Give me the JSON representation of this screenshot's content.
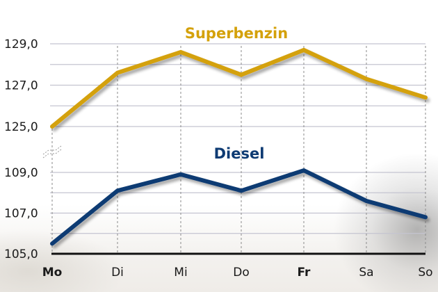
{
  "chart_data": {
    "type": "line",
    "title": "",
    "xlabel": "",
    "ylabel": "",
    "categories": [
      "Mo",
      "Di",
      "Mi",
      "Do",
      "Fr",
      "Sa",
      "So"
    ],
    "bold_categories": [
      "Mo",
      "Fr"
    ],
    "broken_axis": true,
    "panels": [
      {
        "name": "upper",
        "ylim": [
          125.0,
          129.0
        ],
        "yticks": [
          "129,0",
          "127,0",
          "125,0"
        ],
        "series": [
          {
            "name": "Superbenzin",
            "color": "#D4A10A",
            "values": [
              125.0,
              127.6,
              128.6,
              127.5,
              128.7,
              127.3,
              126.4
            ]
          }
        ]
      },
      {
        "name": "lower",
        "ylim": [
          105.0,
          109.0
        ],
        "yticks": [
          "109,0",
          "107,0",
          "105,0"
        ],
        "series": [
          {
            "name": "Diesel",
            "color": "#0E3B73",
            "values": [
              105.5,
              108.1,
              108.9,
              108.1,
              109.1,
              107.6,
              106.8
            ]
          }
        ]
      }
    ],
    "grid": true,
    "legend": "inline labels above each line"
  },
  "labels": {
    "superbenzin": "Superbenzin",
    "diesel": "Diesel"
  },
  "colors": {
    "superbenzin": "#D4A10A",
    "diesel": "#0E3B73",
    "grid": "#c4c4d0",
    "axis": "#111111"
  }
}
